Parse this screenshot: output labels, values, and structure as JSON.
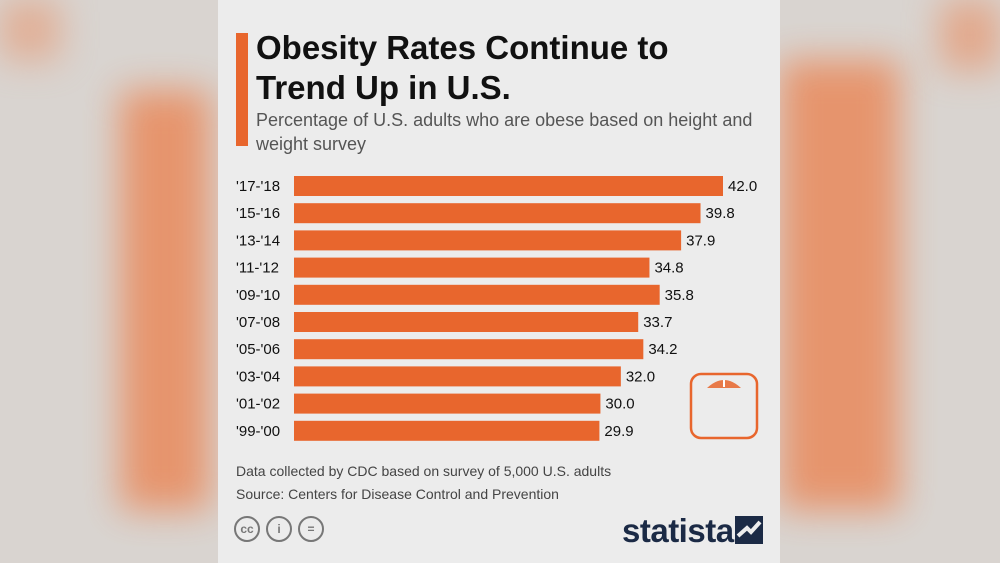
{
  "chart_data": {
    "type": "bar",
    "orientation": "horizontal",
    "title": "Obesity Rates Continue to Trend Up in U.S.",
    "subtitle": "Percentage of U.S. adults who are obese based on height and weight survey",
    "categories": [
      "'17-'18",
      "'15-'16",
      "'13-'14",
      "'11-'12",
      "'09-'10",
      "'07-'08",
      "'05-'06",
      "'03-'04",
      "'01-'02",
      "'99-'00"
    ],
    "values": [
      42.0,
      39.8,
      37.9,
      34.8,
      35.8,
      33.7,
      34.2,
      32.0,
      30.0,
      29.9
    ],
    "value_labels": [
      "42.0",
      "39.8",
      "37.9",
      "34.8",
      "35.8",
      "33.7",
      "34.2",
      "32.0",
      "30.0",
      "29.9"
    ],
    "xlim": [
      0,
      42.0
    ],
    "grid": false,
    "bar_color": "#e8662d"
  },
  "notes": {
    "line1": "Data collected by CDC based on survey of 5,000 U.S. adults",
    "line2": "Source: Centers for Disease Control and Prevention"
  },
  "license_icons": [
    "cc",
    "i",
    "="
  ],
  "brand": "statista",
  "icons": [
    "scale-icon",
    "statista-logo-icon",
    "creative-commons-icon",
    "attribution-icon",
    "no-derivatives-icon"
  ]
}
